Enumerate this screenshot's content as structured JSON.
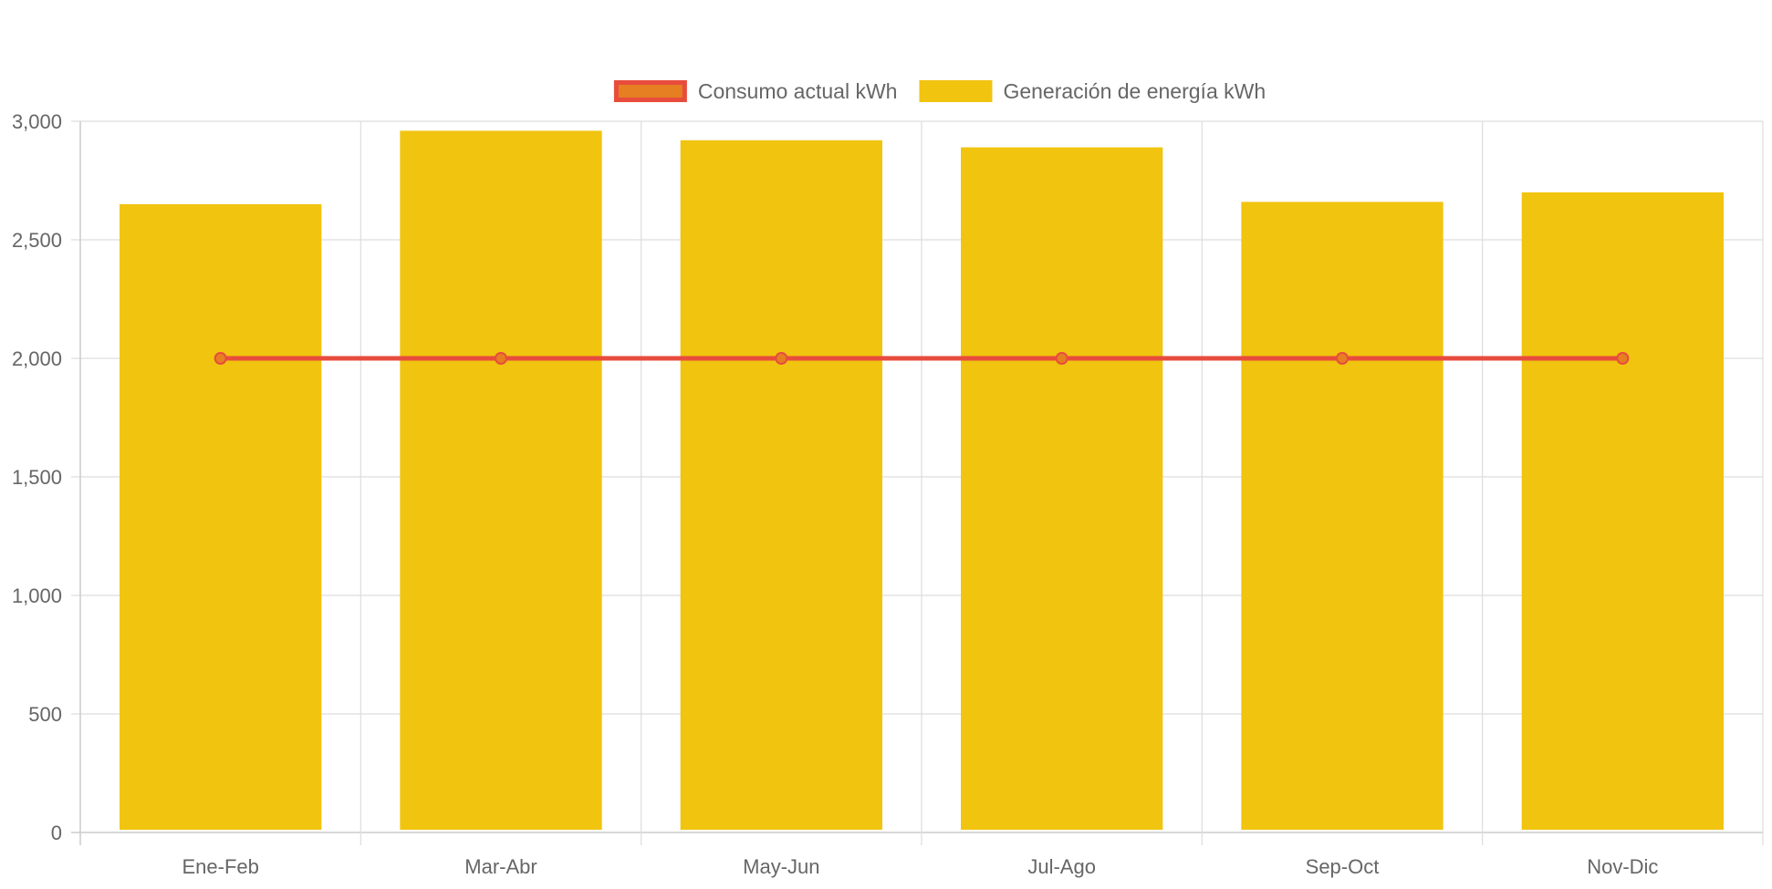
{
  "chart_data": {
    "type": "bar",
    "categories": [
      "Ene-Feb",
      "Mar-Abr",
      "May-Jun",
      "Jul-Ago",
      "Sep-Oct",
      "Nov-Dic"
    ],
    "series": [
      {
        "name": "Consumo actual kWh",
        "type": "line",
        "values": [
          2000,
          2000,
          2000,
          2000,
          2000,
          2000
        ],
        "color": "#e84c3d",
        "point_fill": "#e67e22"
      },
      {
        "name": "Generación de energía kWh",
        "type": "bar",
        "values": [
          2650,
          2960,
          2920,
          2890,
          2660,
          2700
        ],
        "color": "#f1c40f"
      }
    ],
    "ylim": [
      0,
      3000
    ],
    "yticks": [
      0,
      500,
      1000,
      1500,
      2000,
      2500,
      3000
    ],
    "ytick_labels": [
      "0",
      "500",
      "1,000",
      "1,500",
      "2,000",
      "2,500",
      "3,000"
    ],
    "grid": true,
    "legend_position": "top-center"
  }
}
